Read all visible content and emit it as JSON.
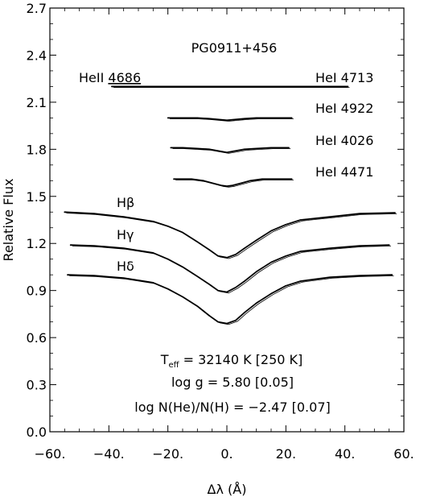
{
  "chart_data": {
    "type": "line",
    "title": "PG0911+456",
    "xlabel": "Δλ (Å)",
    "ylabel": "Relative Flux",
    "xlim": [
      -60,
      60
    ],
    "ylim": [
      0,
      2.7
    ],
    "x_ticks": [
      -60,
      -40,
      -20,
      0,
      20,
      40,
      60
    ],
    "x_tick_labels": [
      "−60.",
      "−40.",
      "−20.",
      "0.",
      "20.",
      "40.",
      "60."
    ],
    "y_ticks": [
      0,
      0.3,
      0.6,
      0.9,
      1.2,
      1.5,
      1.8,
      2.1,
      2.4,
      2.7
    ],
    "y_tick_labels": [
      "0.0",
      "0.3",
      "0.6",
      "0.9",
      "1.2",
      "1.5",
      "1.8",
      "2.1",
      "2.4",
      "2.7"
    ],
    "grid": false,
    "series": [
      {
        "name": "HeII 4686",
        "name_underlined": "4686",
        "x": [
          -39,
          -30,
          -20,
          -10,
          -5,
          0,
          5,
          10,
          20,
          30,
          41
        ],
        "y": [
          2.2,
          2.2,
          2.2,
          2.2,
          2.2,
          2.2,
          2.2,
          2.2,
          2.2,
          2.2,
          2.2
        ]
      },
      {
        "name": "HeI 4713",
        "x": [
          -39,
          41
        ],
        "y": [
          2.2,
          2.2
        ]
      },
      {
        "name": "HeI 4922",
        "x": [
          -20,
          -15,
          -10,
          -6,
          -3,
          0,
          3,
          6,
          10,
          15,
          22
        ],
        "y": [
          2.0,
          2.0,
          2.0,
          1.995,
          1.99,
          1.985,
          1.99,
          1.995,
          2.0,
          2.0,
          2.0
        ]
      },
      {
        "name": "HeI 4026",
        "x": [
          -19,
          -15,
          -10,
          -6,
          -3,
          0,
          3,
          6,
          10,
          15,
          21
        ],
        "y": [
          1.81,
          1.81,
          1.805,
          1.8,
          1.79,
          1.78,
          1.79,
          1.8,
          1.805,
          1.81,
          1.81
        ]
      },
      {
        "name": "HeI 4471",
        "x": [
          -18,
          -12,
          -8,
          -5,
          -2,
          0,
          2,
          5,
          8,
          12,
          22
        ],
        "y": [
          1.61,
          1.61,
          1.6,
          1.585,
          1.57,
          1.565,
          1.57,
          1.585,
          1.6,
          1.61,
          1.61
        ]
      },
      {
        "name": "Hβ",
        "x": [
          -55,
          -45,
          -35,
          -25,
          -20,
          -15,
          -10,
          -6,
          -3,
          0,
          3,
          6,
          10,
          15,
          20,
          25,
          35,
          45,
          57
        ],
        "y": [
          1.4,
          1.39,
          1.37,
          1.34,
          1.31,
          1.27,
          1.21,
          1.16,
          1.12,
          1.11,
          1.13,
          1.17,
          1.22,
          1.28,
          1.32,
          1.35,
          1.37,
          1.39,
          1.395
        ]
      },
      {
        "name": "Hγ",
        "x": [
          -53,
          -45,
          -35,
          -25,
          -20,
          -15,
          -10,
          -6,
          -3,
          0,
          3,
          6,
          10,
          15,
          20,
          25,
          35,
          45,
          55
        ],
        "y": [
          1.19,
          1.185,
          1.17,
          1.14,
          1.1,
          1.05,
          0.99,
          0.94,
          0.9,
          0.89,
          0.92,
          0.96,
          1.02,
          1.08,
          1.12,
          1.15,
          1.17,
          1.185,
          1.19
        ]
      },
      {
        "name": "Hδ",
        "x": [
          -54,
          -45,
          -35,
          -25,
          -20,
          -15,
          -10,
          -6,
          -3,
          0,
          3,
          6,
          10,
          15,
          20,
          25,
          35,
          45,
          56
        ],
        "y": [
          1.0,
          0.995,
          0.98,
          0.95,
          0.91,
          0.86,
          0.8,
          0.74,
          0.7,
          0.69,
          0.71,
          0.76,
          0.82,
          0.88,
          0.93,
          0.96,
          0.985,
          0.995,
          1.0
        ]
      }
    ],
    "annotations": [
      {
        "name": "title",
        "text": "PG0911+456"
      },
      {
        "name": "hbeta-label",
        "text": "Hβ"
      },
      {
        "name": "hgamma-label",
        "text": "Hγ"
      },
      {
        "name": "hdelta-label",
        "text": "Hδ"
      }
    ],
    "parameters": {
      "teff": "T",
      "teff_sub": "eff",
      "teff_value": " = 32140 K [250 K]",
      "logg": "log g = 5.80 [0.05]",
      "loghe": "log N(He)/N(H) = −2.47 [0.07]"
    }
  }
}
